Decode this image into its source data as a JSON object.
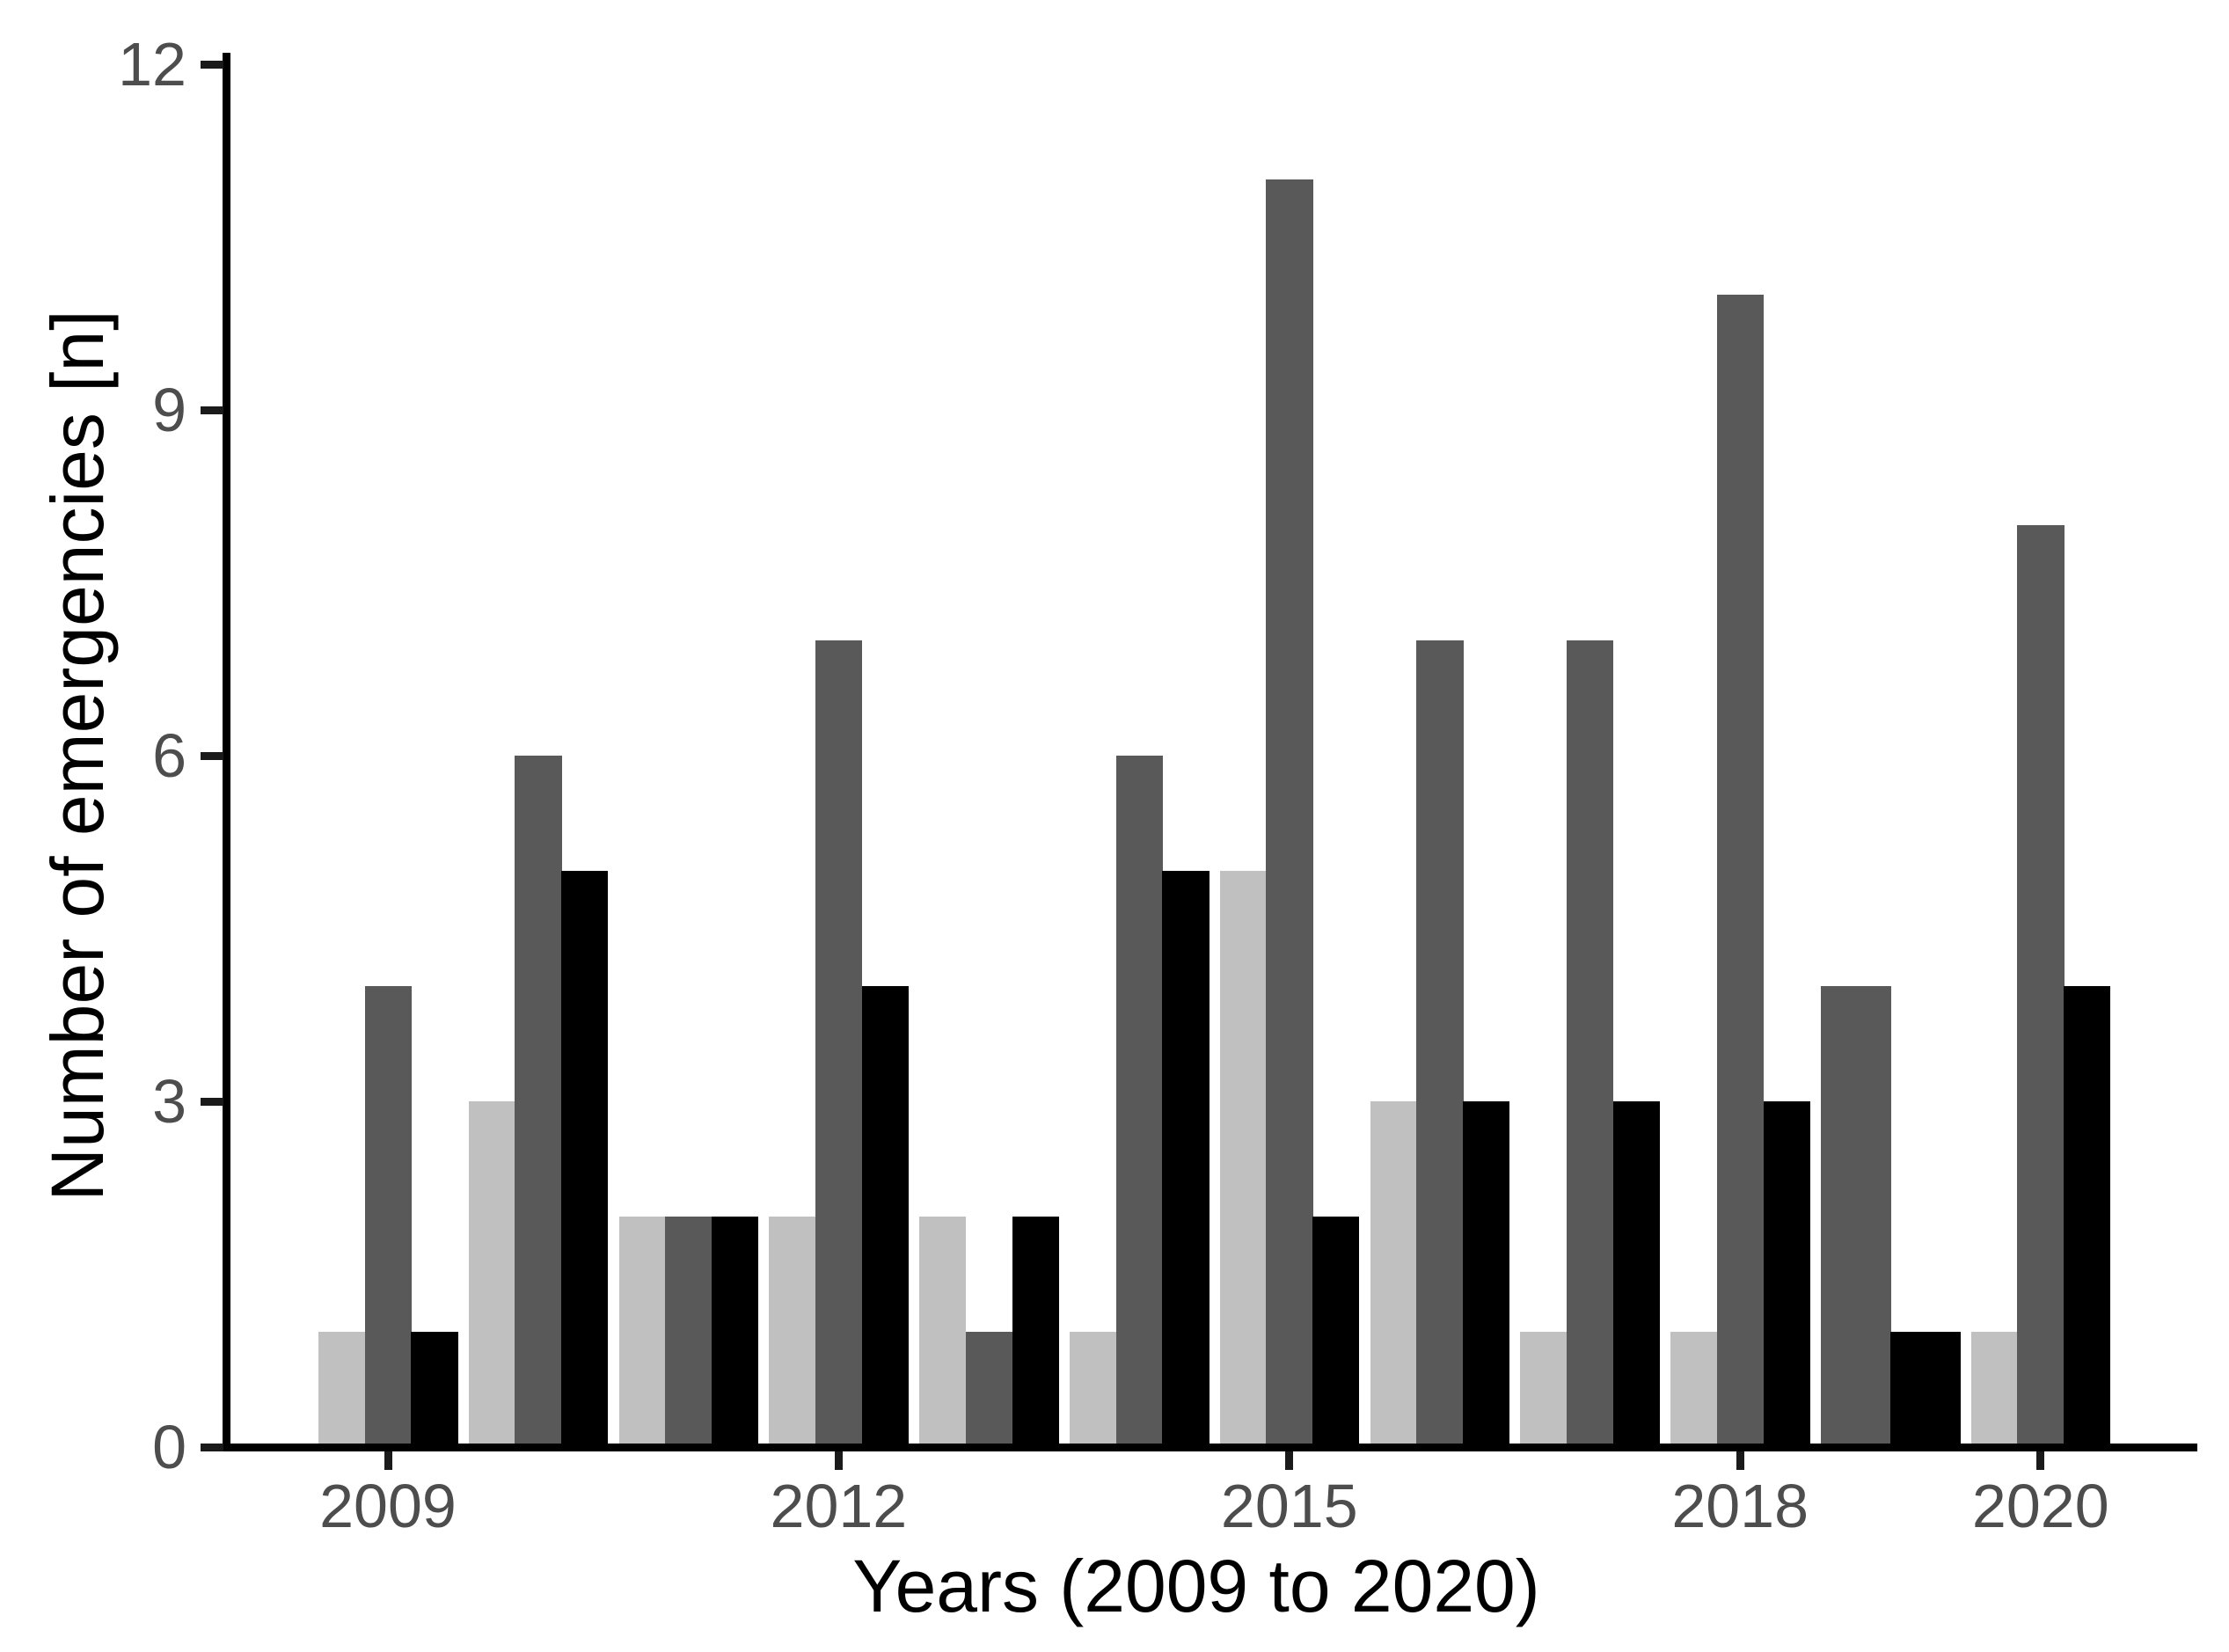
{
  "figure": {
    "background": "#ffffff"
  },
  "colors": {
    "light_grey": "#c0c0c0",
    "dark_grey": "#595959",
    "black": "#000000",
    "axis": "#000000",
    "tick_mark": "#1a1a1a",
    "tick_label": "#4d4d4d",
    "title": "#000000"
  },
  "chart_data": {
    "type": "bar",
    "title": "",
    "xlabel": "Years (2009 to 2020)",
    "ylabel": "Number of emergencies [n]",
    "categories": [
      2009,
      2010,
      2011,
      2012,
      2013,
      2014,
      2015,
      2016,
      2017,
      2018,
      2019,
      2020
    ],
    "series": [
      {
        "name": "light-grey",
        "color_key": "light_grey",
        "values": [
          1,
          3,
          2,
          2,
          2,
          1,
          5,
          3,
          1,
          1,
          null,
          1
        ]
      },
      {
        "name": "dark-grey",
        "color_key": "dark_grey",
        "values": [
          4,
          6,
          2,
          7,
          1,
          6,
          11,
          7,
          7,
          10,
          4,
          8
        ]
      },
      {
        "name": "black",
        "color_key": "black",
        "values": [
          1,
          5,
          2,
          4,
          2,
          5,
          2,
          3,
          3,
          3,
          1,
          4
        ]
      }
    ],
    "ylim": [
      0,
      12
    ],
    "yticks": [
      0,
      3,
      6,
      9,
      12
    ],
    "ytick_labels": [
      "0",
      "3",
      "6",
      "9",
      "12"
    ],
    "xtick_years": [
      2009,
      2012,
      2015,
      2018,
      2020
    ],
    "xtick_labels": [
      "2009",
      "2012",
      "2015",
      "2018",
      "2020"
    ],
    "grid": false,
    "legend": false,
    "bar_grouping": "dodge"
  }
}
